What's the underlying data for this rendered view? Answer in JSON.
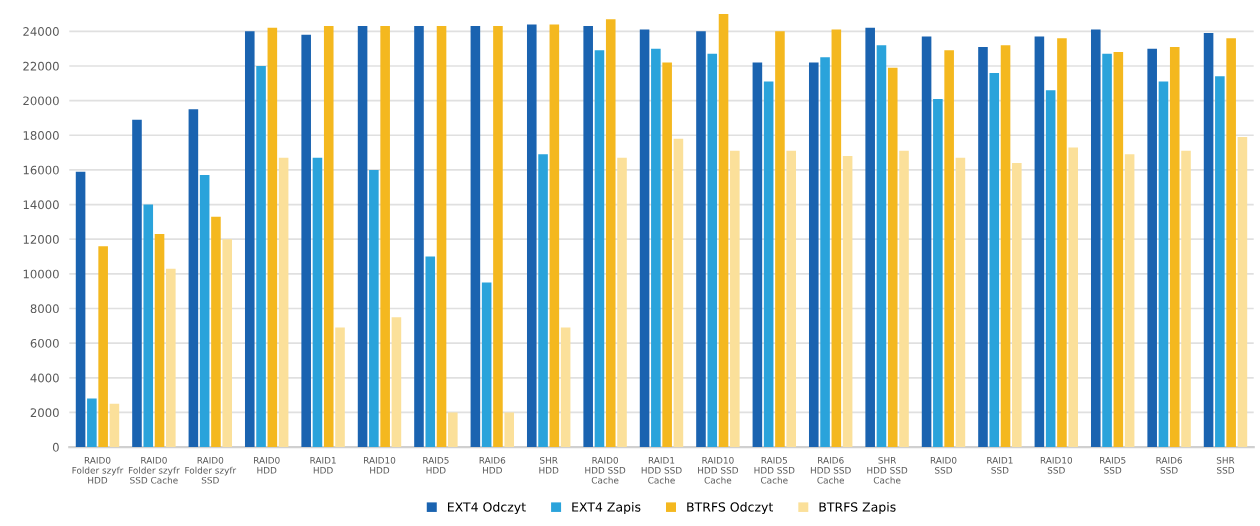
{
  "chart_data": {
    "type": "bar",
    "categories": [
      "RAID0\nFolder szyfr\nHDD",
      "RAID0\nFolder szyfr\nSSD Cache",
      "RAID0\nFolder szyfr\nSSD",
      "RAID0\nHDD",
      "RAID1\nHDD",
      "RAID10\nHDD",
      "RAID5\nHDD",
      "RAID6\nHDD",
      "SHR\nHDD",
      "RAID0\nHDD SSD\nCache",
      "RAID1\nHDD SSD\nCache",
      "RAID10\nHDD SSD\nCache",
      "RAID5\nHDD SSD\nCache",
      "RAID6\nHDD SSD\nCache",
      "SHR\nHDD SSD\nCache",
      "RAID0\nSSD",
      "RAID1\nSSD",
      "RAID10\nSSD",
      "RAID5\nSSD",
      "RAID6\nSSD",
      "SHR\nSSD"
    ],
    "series": [
      {
        "name": "EXT4 Odczyt",
        "color": "#1a63b0",
        "values": [
          15900,
          18900,
          19500,
          24000,
          23800,
          24300,
          24300,
          24300,
          24400,
          24300,
          24100,
          24000,
          22200,
          22200,
          24200,
          23700,
          23100,
          23700,
          24100,
          23000,
          23900
        ]
      },
      {
        "name": "EXT4 Zapis",
        "color": "#2aa3db",
        "values": [
          2800,
          14000,
          15700,
          22000,
          16700,
          16000,
          11000,
          9500,
          16900,
          22900,
          23000,
          22700,
          21100,
          22500,
          23200,
          20100,
          21600,
          20600,
          22700,
          21100,
          21400
        ]
      },
      {
        "name": "BTRFS Odczyt",
        "color": "#f4b81f",
        "values": [
          11600,
          12300,
          13300,
          24200,
          24300,
          24300,
          24300,
          24300,
          24400,
          24700,
          22200,
          25000,
          24000,
          24100,
          21900,
          22900,
          23200,
          23600,
          22800,
          23100,
          23600
        ]
      },
      {
        "name": "BTRFS Zapis",
        "color": "#fbe09a",
        "values": [
          2500,
          10300,
          12000,
          16700,
          6900,
          7500,
          2000,
          2000,
          6900,
          16700,
          17800,
          17100,
          17100,
          16800,
          17100,
          16700,
          16400,
          17300,
          16900,
          17100,
          17900
        ]
      }
    ],
    "ylim": [
      0,
      25200
    ],
    "yticks": [
      0,
      2000,
      4000,
      6000,
      8000,
      10000,
      12000,
      14000,
      16000,
      18000,
      20000,
      22000,
      24000
    ],
    "grid": "y",
    "legend": "bottom"
  }
}
